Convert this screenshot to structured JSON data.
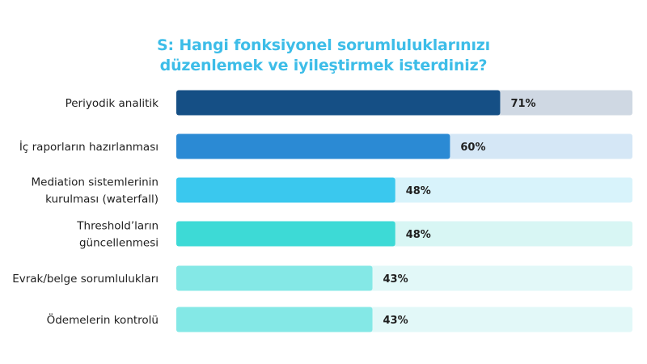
{
  "chart_data": {
    "type": "bar",
    "orientation": "horizontal",
    "title_lines": [
      "S:  Hangi fonksiyonel sorumluluklarınızı",
      "düzenlemek ve iyileştirmek isterdiniz?"
    ],
    "categories": [
      [
        "Periyodik analitik"
      ],
      [
        "İç raporların hazırlanması"
      ],
      [
        "Mediation sistemlerinin",
        "kurulması (waterfall)"
      ],
      [
        "Threshold’ların",
        "güncellenmesi"
      ],
      [
        "Evrak/belge sorumlulukları"
      ],
      [
        "Ödemelerin kontrolü"
      ]
    ],
    "values": [
      71,
      60,
      48,
      48,
      43,
      43
    ],
    "value_labels": [
      "71%",
      "60%",
      "48%",
      "48%",
      "43%",
      "43%"
    ],
    "xlim": [
      0,
      100
    ],
    "grid": false,
    "legend": "none",
    "bar_colors": [
      "#154f85",
      "#2b8ad4",
      "#3ac8ee",
      "#3ddad6",
      "#84e8e6",
      "#84e8e6"
    ],
    "track_colors": [
      "#cfd8e3",
      "#d5e7f6",
      "#d8f3fb",
      "#d8f6f4",
      "#e2f8f8",
      "#e2f8f8"
    ],
    "label_color": "#1f1f1f"
  }
}
